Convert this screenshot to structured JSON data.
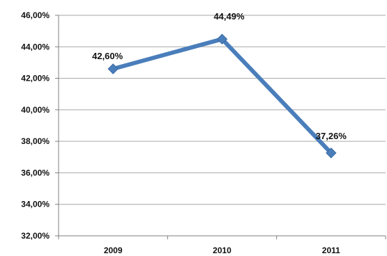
{
  "chart_data": {
    "type": "line",
    "title": "",
    "xlabel": "",
    "ylabel": "",
    "categories": [
      "2009",
      "2010",
      "2011"
    ],
    "series": [
      {
        "values": [
          42.6,
          44.49,
          37.26
        ],
        "data_labels": [
          "42,60%",
          "44,49%",
          "37,26%"
        ]
      }
    ],
    "ylim": [
      32,
      46
    ],
    "y_ticks": [
      46,
      44,
      42,
      40,
      38,
      36,
      34,
      32
    ],
    "y_tick_labels": [
      "46,00%",
      "44,00%",
      "42,00%",
      "40,00%",
      "38,00%",
      "36,00%",
      "34,00%",
      "32,00%"
    ],
    "grid": true,
    "legend": "none",
    "line_color": "#4a7ebb",
    "marker": "diamond"
  }
}
